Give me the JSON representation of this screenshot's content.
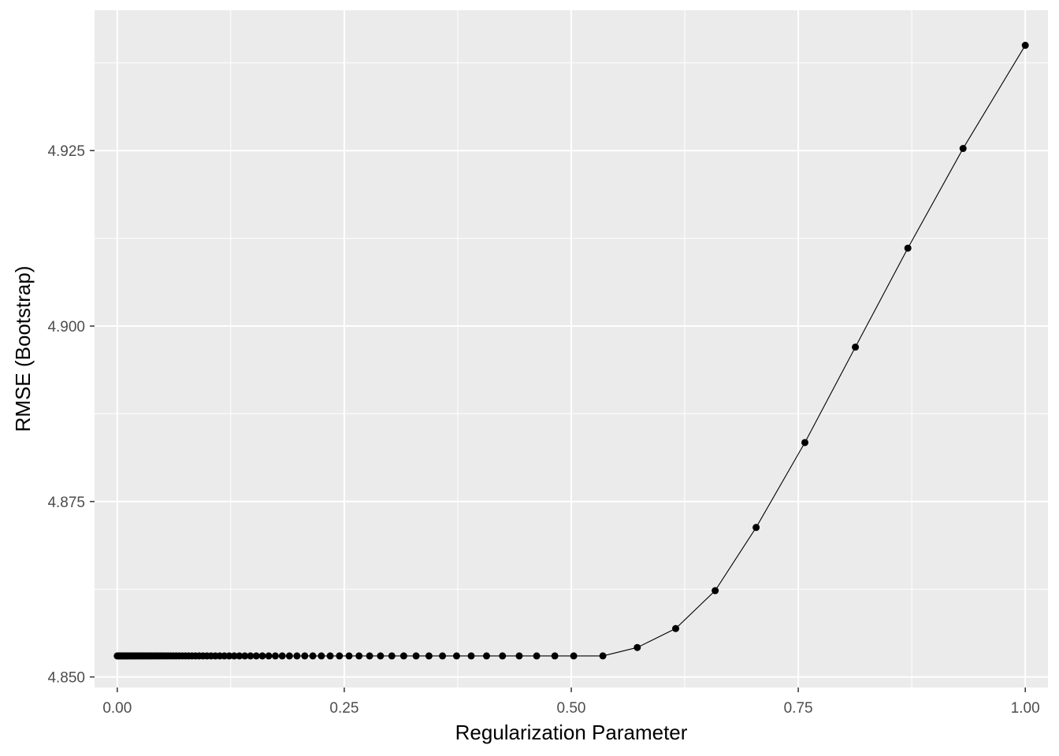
{
  "chart_data": {
    "type": "line",
    "title": "",
    "xlabel": "Regularization Parameter",
    "ylabel": "RMSE (Bootstrap)",
    "xlim": [
      -0.025,
      1.025
    ],
    "ylim": [
      4.8485,
      4.945
    ],
    "x_ticks": [
      0,
      0.25,
      0.5,
      0.75,
      1
    ],
    "x_tick_labels": [
      "0.00",
      "0.25",
      "0.50",
      "0.75",
      "1.00"
    ],
    "y_ticks": [
      4.85,
      4.875,
      4.9,
      4.925
    ],
    "y_tick_labels": [
      "4.850",
      "4.875",
      "4.900",
      "4.925"
    ],
    "grid": true,
    "legend": "none",
    "colors": {
      "panel": "#ebebeb",
      "grid": "#ffffff",
      "series": "#000000",
      "tick_text": "#4d4d4d"
    },
    "series": [
      {
        "x": [
          0.0,
          0.0012,
          0.0025,
          0.0038,
          0.0051,
          0.0065,
          0.0079,
          0.0093,
          0.0108,
          0.0123,
          0.0138,
          0.0154,
          0.017,
          0.0187,
          0.0204,
          0.0221,
          0.0239,
          0.0258,
          0.0277,
          0.0297,
          0.0317,
          0.0338,
          0.0359,
          0.0381,
          0.0404,
          0.0428,
          0.0452,
          0.0478,
          0.0504,
          0.0531,
          0.0559,
          0.0588,
          0.0618,
          0.0649,
          0.0681,
          0.0715,
          0.075,
          0.0786,
          0.0823,
          0.0862,
          0.0902,
          0.0944,
          0.0988,
          0.1033,
          0.108,
          0.1129,
          0.118,
          0.1233,
          0.1288,
          0.1345,
          0.1405,
          0.1467,
          0.1531,
          0.1598,
          0.1668,
          0.1741,
          0.1817,
          0.1896,
          0.1979,
          0.2065,
          0.2154,
          0.2248,
          0.2345,
          0.2447,
          0.2553,
          0.2663,
          0.2779,
          0.2899,
          0.3024,
          0.3155,
          0.3291,
          0.3433,
          0.3582,
          0.3737,
          0.3898,
          0.4067,
          0.4243,
          0.4427,
          0.4619,
          0.4819,
          0.5027,
          0.5348,
          0.5727,
          0.615,
          0.6585,
          0.7036,
          0.7573,
          0.8129,
          0.8707,
          0.9315,
          1.0
        ],
        "y": [
          4.853,
          4.853,
          4.853,
          4.853,
          4.853,
          4.853,
          4.853,
          4.853,
          4.853,
          4.853,
          4.853,
          4.853,
          4.853,
          4.853,
          4.853,
          4.853,
          4.853,
          4.853,
          4.853,
          4.853,
          4.853,
          4.853,
          4.853,
          4.853,
          4.853,
          4.853,
          4.853,
          4.853,
          4.853,
          4.853,
          4.853,
          4.853,
          4.853,
          4.853,
          4.853,
          4.853,
          4.853,
          4.853,
          4.853,
          4.853,
          4.853,
          4.853,
          4.853,
          4.853,
          4.853,
          4.853,
          4.853,
          4.853,
          4.853,
          4.853,
          4.853,
          4.853,
          4.853,
          4.853,
          4.853,
          4.853,
          4.853,
          4.853,
          4.853,
          4.853,
          4.853,
          4.853,
          4.853,
          4.853,
          4.853,
          4.853,
          4.853,
          4.853,
          4.853,
          4.853,
          4.853,
          4.853,
          4.853,
          4.853,
          4.853,
          4.853,
          4.853,
          4.853,
          4.853,
          4.853,
          4.853,
          4.853,
          4.8542,
          4.8569,
          4.8623,
          4.8713,
          4.8834,
          4.897,
          4.9111,
          4.9253,
          4.94
        ]
      }
    ]
  }
}
